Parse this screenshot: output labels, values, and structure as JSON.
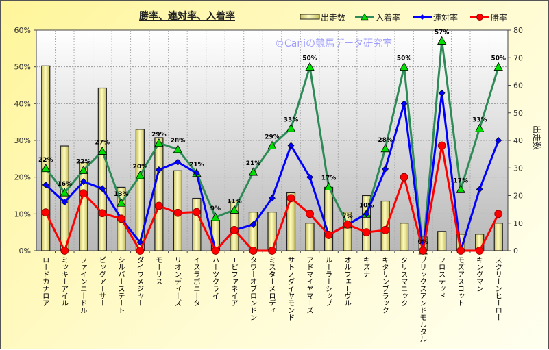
{
  "chart_data": {
    "type": "bar+line",
    "title": "勝率、連対率、入着率",
    "watermark": "©Caniの競馬データ研究室",
    "ylabel_right": "出走数",
    "ylim_left": [
      0,
      60
    ],
    "yticks_left": [
      "0%",
      "10%",
      "20%",
      "30%",
      "40%",
      "50%",
      "60%"
    ],
    "ylim_right": [
      0,
      80
    ],
    "yticks_right": [
      "0",
      "10",
      "20",
      "30",
      "40",
      "50",
      "60",
      "70",
      "80"
    ],
    "grid": true,
    "legend_position": "top-right",
    "categories": [
      "ロードカナロア",
      "ミッキーアイル",
      "ファインニードル",
      "ビッグアーサー",
      "シルバーステート",
      "ダイワメジャー",
      "モーリス",
      "リオンディーズ",
      "イスラボニータ",
      "ハーツクライ",
      "エピファネイア",
      "タワーオブロンドン",
      "ミスターメロディ",
      "サトノダイヤモンド",
      "アドマイヤマーズ",
      "ルーラーシップ",
      "オルフェーヴル",
      "キズナ",
      "キタサンブラック",
      "タリスマニック",
      "ブリックスアンドモルタル",
      "フロステッド",
      "モズアスコット",
      "キングマン",
      "スクリーンヒーロー"
    ],
    "series": [
      {
        "name": "出走数",
        "type": "bar",
        "axis": "right",
        "color": "#f5f0a0",
        "values": [
          67,
          38,
          32,
          59,
          23,
          44,
          41,
          29,
          19,
          11,
          18,
          14,
          14,
          21,
          10,
          23,
          14,
          20,
          18,
          10,
          5,
          7,
          6,
          6,
          10
        ]
      },
      {
        "name": "入着率",
        "type": "line",
        "axis": "left",
        "color": "#2e8b57",
        "marker": "triangle",
        "marker_color": "#00dd00",
        "values": [
          22.4,
          15.8,
          21.9,
          27.1,
          13.0,
          20.5,
          29.3,
          27.6,
          21.1,
          9.1,
          11.1,
          21.4,
          28.6,
          33.3,
          50.0,
          17.4,
          7.1,
          10.0,
          27.8,
          50.0,
          0,
          57.1,
          16.7,
          33.3,
          50.0
        ],
        "labels": [
          "22%",
          "16%",
          "22%",
          "27%",
          "13%",
          "20%",
          "29%",
          "28%",
          "21%",
          "9%",
          "11%",
          "21%",
          "29%",
          "33%",
          "50%",
          "17%",
          "7%",
          "10%",
          "28%",
          "50%",
          "0%",
          "57%",
          "17%",
          "33%",
          "50%"
        ]
      },
      {
        "name": "連対率",
        "type": "line",
        "axis": "left",
        "color": "#0000ff",
        "marker": "diamond",
        "values": [
          17.9,
          13.2,
          18.8,
          16.9,
          8.7,
          2.3,
          22.0,
          24.1,
          21.1,
          0,
          5.6,
          7.1,
          14.3,
          28.6,
          20.0,
          4.3,
          7.1,
          10.0,
          22.2,
          40.0,
          0,
          42.9,
          0,
          16.7,
          30.0
        ]
      },
      {
        "name": "勝率",
        "type": "line",
        "axis": "left",
        "color": "#ff0000",
        "marker": "circle",
        "values": [
          10.4,
          0,
          15.6,
          10.2,
          8.7,
          0,
          12.2,
          10.3,
          10.5,
          0,
          5.6,
          0,
          0,
          14.3,
          10.0,
          4.3,
          7.1,
          5.0,
          5.6,
          20.0,
          0,
          28.6,
          0,
          0,
          10.0
        ]
      }
    ]
  }
}
